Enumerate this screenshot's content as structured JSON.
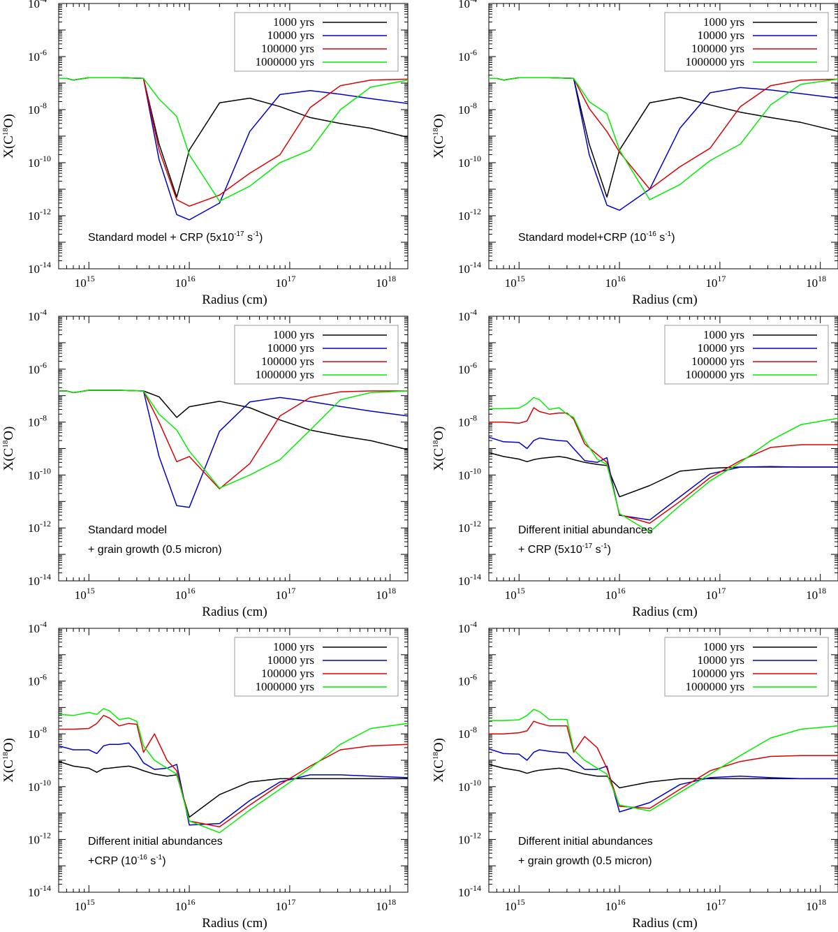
{
  "figure": {
    "shared": {
      "type": "line",
      "xlabel": "Radius (cm)",
      "ylabel": "X(C18O)",
      "ylabel_parts": {
        "base": "X(C",
        "sup": "18",
        "tail": "O)"
      },
      "xscale": "log",
      "yscale": "log",
      "xlim": [
        500000000000000.0,
        1.5e+18
      ],
      "ylim": [
        1e-14,
        0.0001
      ],
      "xticks": [
        {
          "value": 1000000000000000.0,
          "base": "10",
          "exp": "15"
        },
        {
          "value": 1e+16,
          "base": "10",
          "exp": "16"
        },
        {
          "value": 1e+17,
          "base": "10",
          "exp": "17"
        },
        {
          "value": 1e+18,
          "base": "10",
          "exp": "18"
        }
      ],
      "yticks": [
        {
          "value": 0.0001,
          "base": "10",
          "exp": "-4"
        },
        {
          "value": 1e-06,
          "base": "10",
          "exp": "-6"
        },
        {
          "value": 1e-08,
          "base": "10",
          "exp": "-8"
        },
        {
          "value": 1e-10,
          "base": "10",
          "exp": "-10"
        },
        {
          "value": 1e-12,
          "base": "10",
          "exp": "-12"
        },
        {
          "value": 1e-14,
          "base": "10",
          "exp": "-14"
        }
      ],
      "legend_position": "top-right",
      "series_style": [
        {
          "name": "1000 yrs",
          "color": "#000000"
        },
        {
          "name": "10000 yrs",
          "color": "#0000cc"
        },
        {
          "name": "100000 yrs",
          "color": "#dd0000"
        },
        {
          "name": "1000000 yrs",
          "color": "#00ee00"
        }
      ]
    }
  },
  "chart_data": [
    {
      "type": "line",
      "annotation": [
        {
          "text": "Standard model + CRP (5x10",
          "sup": "-17",
          "tail": " s",
          "sup2": "-1",
          "tail2": ")"
        }
      ],
      "x": [
        500000000000000.0,
        600000000000000.0,
        700000000000000.0,
        800000000000000.0,
        1000000000000000.0,
        2000000000000000.0,
        3500000000000000.0,
        5000000000000000.0,
        7500000000000000.0,
        1e+16,
        2e+16,
        4e+16,
        8e+16,
        1.6e+17,
        3.2e+17,
        6.4e+17,
        1.5e+18
      ],
      "series": [
        {
          "name": "1000 yrs",
          "values": [
            1.5e-07,
            1.5e-07,
            1.3e-07,
            1.4e-07,
            1.6e-07,
            1.6e-07,
            1.5e-07,
            5e-10,
            5e-12,
            3e-10,
            1.8e-08,
            2.7e-08,
            1.3e-08,
            5e-09,
            3e-09,
            2e-09,
            9e-10
          ]
        },
        {
          "name": "10000 yrs",
          "values": [
            1.5e-07,
            1.5e-07,
            1.3e-07,
            1.4e-07,
            1.6e-07,
            1.6e-07,
            1.5e-07,
            1.3e-10,
            1.1e-12,
            7e-13,
            3e-12,
            1.5e-09,
            3.7e-08,
            5.2e-08,
            3.8e-08,
            2.6e-08,
            1.7e-08
          ]
        },
        {
          "name": "100000 yrs",
          "values": [
            1.5e-07,
            1.5e-07,
            1.3e-07,
            1.4e-07,
            1.6e-07,
            1.6e-07,
            1.5e-07,
            3e-10,
            4e-12,
            2.3e-12,
            6e-12,
            4e-11,
            2e-10,
            1.2e-08,
            8e-08,
            1.3e-07,
            1.4e-07
          ]
        },
        {
          "name": "1000000 yrs",
          "values": [
            1.5e-07,
            1.5e-07,
            1.3e-07,
            1.4e-07,
            1.6e-07,
            1.6e-07,
            1.5e-07,
            2.5e-08,
            5.5e-09,
            2e-10,
            3.5e-12,
            1.3e-11,
            1e-10,
            3e-10,
            1e-08,
            7e-08,
            1.3e-07
          ]
        }
      ]
    },
    {
      "type": "line",
      "annotation": [
        {
          "text": "Standard model+CRP (10",
          "sup": "-16",
          "tail": " s",
          "sup2": "-1",
          "tail2": ")"
        }
      ],
      "x": [
        500000000000000.0,
        600000000000000.0,
        700000000000000.0,
        800000000000000.0,
        1000000000000000.0,
        2000000000000000.0,
        3500000000000000.0,
        5000000000000000.0,
        7500000000000000.0,
        1e+16,
        2e+16,
        4e+16,
        8e+16,
        1.6e+17,
        3.2e+17,
        6.4e+17,
        1.5e+18
      ],
      "series": [
        {
          "name": "1000 yrs",
          "values": [
            1.5e-07,
            1.5e-07,
            1.3e-07,
            1.4e-07,
            1.6e-07,
            1.6e-07,
            1.5e-07,
            5e-10,
            5e-12,
            3e-10,
            1.8e-08,
            2.9e-08,
            1.5e-08,
            8e-09,
            5e-09,
            3.3e-09,
            1.5e-09
          ]
        },
        {
          "name": "10000 yrs",
          "values": [
            1.5e-07,
            1.5e-07,
            1.3e-07,
            1.4e-07,
            1.6e-07,
            1.6e-07,
            1.5e-07,
            2e-10,
            2.5e-12,
            1.6e-12,
            1e-11,
            2e-09,
            4.3e-08,
            6.8e-08,
            5.5e-08,
            4e-08,
            2.7e-08
          ]
        },
        {
          "name": "100000 yrs",
          "values": [
            1.5e-07,
            1.5e-07,
            1.3e-07,
            1.4e-07,
            1.6e-07,
            1.6e-07,
            1.5e-07,
            1.1e-08,
            1.5e-09,
            2.5e-10,
            1e-11,
            7e-11,
            3.5e-10,
            1.3e-08,
            8e-08,
            1.3e-07,
            1.4e-07
          ]
        },
        {
          "name": "1000000 yrs",
          "values": [
            1.5e-07,
            1.5e-07,
            1.3e-07,
            1.4e-07,
            1.6e-07,
            1.6e-07,
            1.5e-07,
            2e-08,
            7e-09,
            3e-10,
            4e-12,
            1.5e-11,
            1.2e-10,
            5e-10,
            1.5e-08,
            9e-08,
            1.4e-07
          ]
        }
      ]
    },
    {
      "type": "line",
      "annotation": [
        {
          "text": "Standard model"
        },
        {
          "text": "+ grain growth (0.5 micron)"
        }
      ],
      "x": [
        500000000000000.0,
        600000000000000.0,
        700000000000000.0,
        800000000000000.0,
        1000000000000000.0,
        2000000000000000.0,
        3500000000000000.0,
        5000000000000000.0,
        7500000000000000.0,
        1e+16,
        2e+16,
        4e+16,
        8e+16,
        1.6e+17,
        3.2e+17,
        6.4e+17,
        1.5e+18
      ],
      "series": [
        {
          "name": "1000 yrs",
          "values": [
            1.5e-07,
            1.5e-07,
            1.3e-07,
            1.4e-07,
            1.6e-07,
            1.6e-07,
            1.5e-07,
            9e-08,
            1.5e-08,
            3.8e-08,
            6.1e-08,
            3.5e-08,
            1.2e-08,
            5e-09,
            3e-09,
            2e-09,
            9e-10
          ]
        },
        {
          "name": "10000 yrs",
          "values": [
            1.5e-07,
            1.5e-07,
            1.3e-07,
            1.4e-07,
            1.6e-07,
            1.6e-07,
            1.5e-07,
            5e-10,
            7e-12,
            6e-12,
            4.5e-09,
            5.8e-08,
            8.5e-08,
            6e-08,
            3.9e-08,
            2.6e-08,
            1.7e-08
          ]
        },
        {
          "name": "100000 yrs",
          "values": [
            1.5e-07,
            1.5e-07,
            1.3e-07,
            1.4e-07,
            1.6e-07,
            1.6e-07,
            1.5e-07,
            1e-08,
            3.2e-10,
            5e-10,
            3e-11,
            2.7e-10,
            1.7e-08,
            8.5e-08,
            1.4e-07,
            1.5e-07,
            1.5e-07
          ]
        },
        {
          "name": "1000000 yrs",
          "values": [
            1.5e-07,
            1.5e-07,
            1.3e-07,
            1.4e-07,
            1.6e-07,
            1.6e-07,
            1.5e-07,
            2e-08,
            5e-09,
            8e-10,
            3.2e-11,
            1e-10,
            3.8e-10,
            5e-09,
            7e-08,
            1.3e-07,
            1.5e-07
          ]
        }
      ]
    },
    {
      "type": "line",
      "annotation": [
        {
          "text": "Different initial abundances"
        },
        {
          "text": "+ CRP (5x10",
          "sup": "-17",
          "tail": " s",
          "sup2": "-1",
          "tail2": ")"
        }
      ],
      "x": [
        500000000000000.0,
        700000000000000.0,
        1000000000000000.0,
        1200000000000000.0,
        1400000000000000.0,
        1600000000000000.0,
        2000000000000000.0,
        2500000000000000.0,
        3000000000000000.0,
        3500000000000000.0,
        4500000000000000.0,
        6000000000000000.0,
        7500000000000000.0,
        1e+16,
        2e+16,
        4e+16,
        8e+16,
        1.6e+17,
        3.2e+17,
        6.4e+17,
        1.5e+18
      ],
      "series": [
        {
          "name": "1000 yrs",
          "values": [
            7e-10,
            5e-10,
            4e-10,
            3.2e-10,
            3.8e-10,
            4.2e-10,
            4.6e-10,
            5e-10,
            4.5e-10,
            3.8e-10,
            3e-10,
            2.5e-10,
            2.3e-10,
            1.5e-11,
            4e-11,
            1.4e-10,
            1.8e-10,
            2e-10,
            2e-10,
            2e-10,
            2e-10
          ]
        },
        {
          "name": "10000 yrs",
          "values": [
            2.7e-09,
            1.8e-09,
            1.7e-09,
            1e-09,
            2e-09,
            2.5e-09,
            2.2e-09,
            2e-09,
            1.9e-09,
            1e-09,
            3.5e-10,
            3e-10,
            4.5e-10,
            3e-12,
            2e-12,
            1.5e-11,
            1.1e-10,
            2e-10,
            2.1e-10,
            2e-10,
            2e-10
          ]
        },
        {
          "name": "100000 yrs",
          "values": [
            1e-08,
            1e-08,
            9e-09,
            1.1e-08,
            3.5e-08,
            2.5e-08,
            2e-08,
            2.2e-08,
            2.2e-08,
            1.3e-08,
            1.5e-09,
            6e-10,
            3e-10,
            3.2e-12,
            1.5e-12,
            1e-11,
            8e-11,
            3.5e-10,
            1.1e-09,
            1.4e-09,
            1.4e-09
          ]
        },
        {
          "name": "1000000 yrs",
          "values": [
            3.2e-08,
            3.2e-08,
            3.4e-08,
            5e-08,
            8.5e-08,
            7e-08,
            3e-08,
            3.5e-08,
            2e-08,
            1.5e-08,
            2e-09,
            4e-10,
            2.5e-10,
            3.5e-12,
            7e-13,
            7e-12,
            6e-11,
            3e-10,
            2e-09,
            8e-09,
            1.4e-08
          ]
        }
      ]
    },
    {
      "type": "line",
      "annotation": [
        {
          "text": "Different initial abundances"
        },
        {
          "text": "+CRP (10",
          "sup": "-16",
          "tail": " s",
          "sup2": "-1",
          "tail2": ")"
        }
      ],
      "x": [
        500000000000000.0,
        700000000000000.0,
        1000000000000000.0,
        1200000000000000.0,
        1400000000000000.0,
        1600000000000000.0,
        2000000000000000.0,
        2500000000000000.0,
        3000000000000000.0,
        3500000000000000.0,
        4500000000000000.0,
        6000000000000000.0,
        7500000000000000.0,
        1e+16,
        2e+16,
        4e+16,
        8e+16,
        1.6e+17,
        3.2e+17,
        6.4e+17,
        1.5e+18
      ],
      "series": [
        {
          "name": "1000 yrs",
          "values": [
            9e-10,
            6e-10,
            5e-10,
            3.5e-10,
            4.8e-10,
            5e-10,
            5.5e-10,
            6e-10,
            5e-10,
            4e-10,
            3e-10,
            2.5e-10,
            2.8e-10,
            7e-12,
            5e-11,
            1.5e-10,
            2e-10,
            2e-10,
            2e-10,
            2e-10,
            2e-10
          ]
        },
        {
          "name": "10000 yrs",
          "values": [
            3.5e-09,
            2.5e-09,
            2.5e-09,
            1.8e-09,
            3.5e-09,
            4e-09,
            4e-09,
            4.5e-09,
            2e-09,
            8e-10,
            4.5e-10,
            5e-10,
            7e-10,
            3.5e-12,
            4e-12,
            3e-11,
            1.5e-10,
            2.8e-10,
            2.8e-10,
            2.5e-10,
            2.2e-10
          ]
        },
        {
          "name": "100000 yrs",
          "values": [
            1.5e-08,
            1.5e-08,
            1.6e-08,
            2.5e-08,
            5e-08,
            4e-08,
            2e-08,
            2.5e-08,
            2.3e-08,
            2e-09,
            1e-08,
            1e-09,
            4e-10,
            5e-12,
            3e-12,
            2e-11,
            1.2e-10,
            6e-10,
            2.5e-09,
            3.5e-09,
            4e-09
          ]
        },
        {
          "name": "1000000 yrs",
          "values": [
            5.5e-08,
            5e-08,
            6.5e-08,
            5.5e-08,
            9e-08,
            7.5e-08,
            3.5e-08,
            4e-08,
            3e-08,
            3.5e-09,
            1e-09,
            5e-10,
            3e-10,
            5e-12,
            1.8e-12,
            1.3e-11,
            8e-11,
            5e-10,
            4e-09,
            1.6e-08,
            2.5e-08
          ]
        }
      ]
    },
    {
      "type": "line",
      "annotation": [
        {
          "text": "Different initial abundances"
        },
        {
          "text": "+ grain growth (0.5 micron)"
        }
      ],
      "x": [
        500000000000000.0,
        700000000000000.0,
        1000000000000000.0,
        1200000000000000.0,
        1400000000000000.0,
        1600000000000000.0,
        2000000000000000.0,
        2500000000000000.0,
        3000000000000000.0,
        3500000000000000.0,
        4500000000000000.0,
        6000000000000000.0,
        7500000000000000.0,
        1e+16,
        2e+16,
        4e+16,
        8e+16,
        1.6e+17,
        3.2e+17,
        6.4e+17,
        1.5e+18
      ],
      "series": [
        {
          "name": "1000 yrs",
          "values": [
            7e-10,
            5e-10,
            4e-10,
            3.2e-10,
            3.8e-10,
            4.2e-10,
            4.6e-10,
            5e-10,
            4.5e-10,
            3.8e-10,
            3e-10,
            2.5e-10,
            2.5e-10,
            9e-11,
            1.5e-10,
            2e-10,
            2e-10,
            2e-10,
            2e-10,
            2e-10,
            2e-10
          ]
        },
        {
          "name": "10000 yrs",
          "values": [
            2.7e-09,
            1.8e-09,
            1.7e-09,
            1e-09,
            2e-09,
            2.5e-09,
            2.2e-09,
            2e-09,
            1.9e-09,
            1e-09,
            4.5e-10,
            4.5e-10,
            6e-10,
            1.1e-11,
            2.5e-11,
            1.2e-10,
            2.2e-10,
            2.5e-10,
            2.2e-10,
            2e-10,
            2e-10
          ]
        },
        {
          "name": "100000 yrs",
          "values": [
            1e-08,
            1e-08,
            1.1e-08,
            1.3e-08,
            3e-08,
            2.5e-08,
            2e-08,
            2e-08,
            2e-08,
            2e-09,
            8e-09,
            3e-09,
            5e-10,
            1.8e-11,
            1.5e-11,
            8e-11,
            4e-10,
            9e-10,
            1.4e-09,
            1.5e-09,
            1.5e-09
          ]
        },
        {
          "name": "1000000 yrs",
          "values": [
            3.2e-08,
            3.2e-08,
            3.4e-08,
            5e-08,
            8.5e-08,
            7e-08,
            3.5e-08,
            3.5e-08,
            3.5e-08,
            2.5e-09,
            1e-09,
            5e-10,
            3e-10,
            2e-11,
            1.2e-11,
            6e-11,
            3e-10,
            1.5e-09,
            7e-09,
            1.5e-08,
            2e-08
          ]
        }
      ]
    }
  ]
}
